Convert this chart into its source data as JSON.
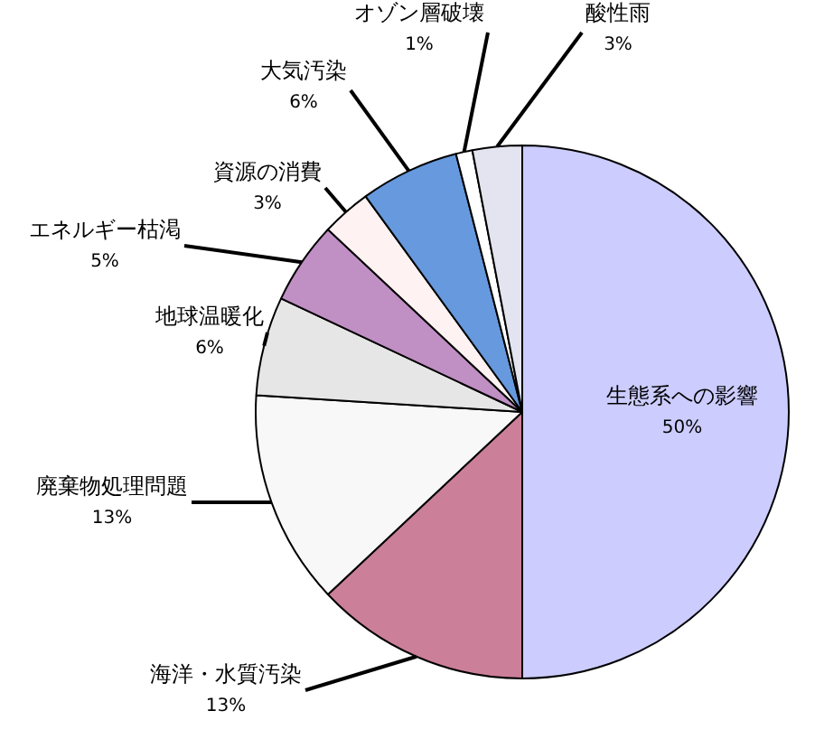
{
  "chart_data": {
    "type": "pie",
    "categories": [
      "生態系への影響",
      "海洋・水質汚染",
      "廃棄物処理問題",
      "地球温暖化",
      "エネルギー枯渇",
      "資源の消費",
      "大気汚染",
      "オゾン層破壊",
      "酸性雨"
    ],
    "values": [
      50,
      13,
      13,
      6,
      5,
      3,
      6,
      1,
      3
    ],
    "colors": [
      "#ccccff",
      "#cc7f99",
      "#f8f8f8",
      "#e6e6e6",
      "#c08fc4",
      "#fff2f2",
      "#6699dd",
      "#ffffff",
      "#e4e4f0"
    ],
    "value_labels": [
      "50%",
      "13%",
      "13%",
      "6%",
      "5%",
      "3%",
      "6%",
      "1%",
      "3%"
    ],
    "legend": false
  }
}
